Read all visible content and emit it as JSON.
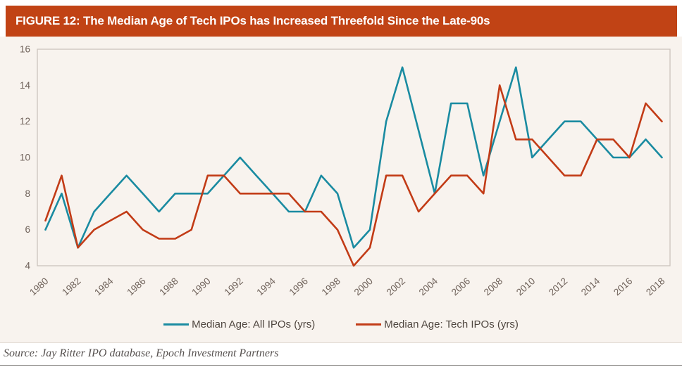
{
  "figure": {
    "title": "FIGURE 12: The Median Age of Tech IPOs has Increased Threefold Since the Late-90s",
    "source": "Source: Jay Ritter IPO database, Epoch Investment Partners"
  },
  "colors": {
    "title_bar": "#C14315",
    "title_text": "#FFFFFF",
    "panel_bg": "#F8F3EE",
    "plot_border": "#CBC4BD",
    "axis_text": "#6E6159",
    "legend_text": "#4F463F",
    "source_text": "#575250",
    "all_ipos": "#1A8BA1",
    "tech_ipos": "#C23B16"
  },
  "chart_data": {
    "type": "line",
    "x": [
      1980,
      1981,
      1982,
      1983,
      1984,
      1985,
      1986,
      1987,
      1988,
      1989,
      1990,
      1991,
      1992,
      1993,
      1994,
      1995,
      1996,
      1997,
      1998,
      1999,
      2000,
      2001,
      2002,
      2003,
      2004,
      2005,
      2006,
      2007,
      2008,
      2009,
      2010,
      2011,
      2012,
      2013,
      2014,
      2015,
      2016,
      2017,
      2018
    ],
    "series": [
      {
        "name": "Median Age: All IPOs (yrs)",
        "key": "all_ipos",
        "values": [
          6,
          8,
          5,
          7,
          8,
          9,
          8,
          7,
          8,
          8,
          8,
          9,
          10,
          9,
          8,
          7,
          7,
          9,
          8,
          5,
          6,
          12,
          15,
          11.5,
          8,
          13,
          13,
          9,
          12,
          15,
          10,
          11,
          12,
          12,
          11,
          10,
          10,
          11,
          10
        ]
      },
      {
        "name": "Median Age: Tech IPOs (yrs)",
        "key": "tech_ipos",
        "values": [
          6.5,
          9,
          5,
          6,
          6.5,
          7,
          6,
          5.5,
          5.5,
          6,
          9,
          9,
          8,
          8,
          8,
          8,
          7,
          7,
          6,
          4,
          5,
          9,
          9,
          7,
          8,
          9,
          9,
          8,
          14,
          11,
          11,
          10,
          9,
          9,
          11,
          11,
          10,
          13,
          12
        ]
      }
    ],
    "ylim": [
      4,
      16
    ],
    "yticks": [
      4,
      6,
      8,
      10,
      12,
      14,
      16
    ],
    "xticks": [
      1980,
      1982,
      1984,
      1986,
      1988,
      1990,
      1992,
      1994,
      1996,
      1998,
      2000,
      2002,
      2004,
      2006,
      2008,
      2010,
      2012,
      2014,
      2016,
      2018
    ],
    "grid": false,
    "legend_position": "bottom-center",
    "line_width": 2.6
  }
}
